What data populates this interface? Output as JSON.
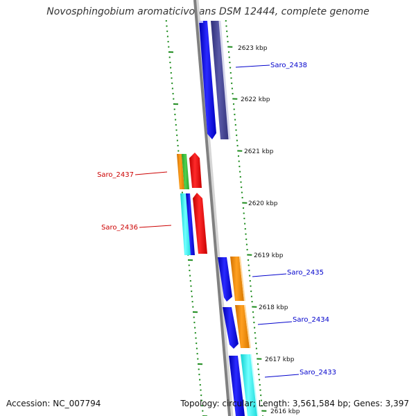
{
  "title": "Novosphingobium aromaticivorans DSM 12444, complete genome",
  "footer": {
    "accession": "Accession: NC_007794",
    "summary": "Topology: circular; Length: 3,561,584 bp; Genes: 3,397"
  },
  "colors": {
    "ruler": "#1a8a1a",
    "gene_label_forward": "#0000cc",
    "gene_label_reverse": "#cc0000",
    "backbone": "#888888",
    "blue": "#1010e0",
    "navy": "#3b3b8c",
    "orange": "#f08c00",
    "green": "#3cb43c",
    "red": "#e01010",
    "cyan": "#20f0f0"
  },
  "ticks": [
    {
      "label": "2623 kbp"
    },
    {
      "label": "2622 kbp"
    },
    {
      "label": "2621 kbp"
    },
    {
      "label": "2620 kbp"
    },
    {
      "label": "2619 kbp"
    },
    {
      "label": "2618 kbp"
    },
    {
      "label": "2617 kbp"
    },
    {
      "label": "2616 kbp"
    }
  ],
  "genes": [
    {
      "label": "Saro_2438",
      "strand": "forward"
    },
    {
      "label": "Saro_2437",
      "strand": "reverse"
    },
    {
      "label": "Saro_2436",
      "strand": "reverse"
    },
    {
      "label": "Saro_2435",
      "strand": "forward"
    },
    {
      "label": "Saro_2434",
      "strand": "forward"
    },
    {
      "label": "Saro_2433",
      "strand": "forward"
    }
  ]
}
